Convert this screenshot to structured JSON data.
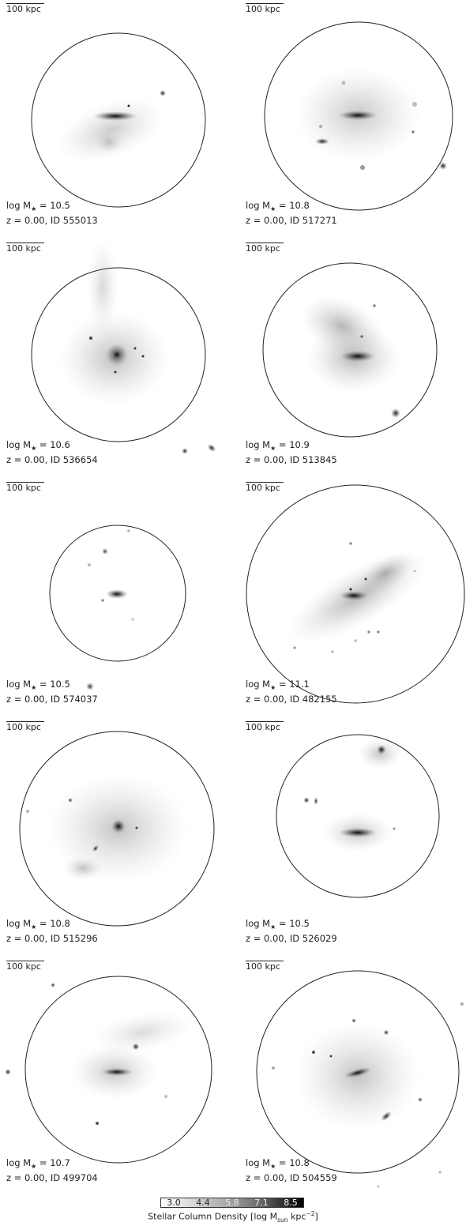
{
  "panels": [
    {
      "scale": "100 kpc",
      "mass_prefix": "log M",
      "mass_value": " = 10.5",
      "redshift": "z = 0.00, ID 555013"
    },
    {
      "scale": "100 kpc",
      "mass_prefix": "log M",
      "mass_value": " = 10.8",
      "redshift": "z = 0.00, ID 517271"
    },
    {
      "scale": "100 kpc",
      "mass_prefix": "log M",
      "mass_value": " = 10.6",
      "redshift": "z = 0.00, ID 536654"
    },
    {
      "scale": "100 kpc",
      "mass_prefix": "log M",
      "mass_value": " = 10.9",
      "redshift": "z = 0.00, ID 513845"
    },
    {
      "scale": "100 kpc",
      "mass_prefix": "log M",
      "mass_value": " = 10.5",
      "redshift": "z = 0.00, ID 574037"
    },
    {
      "scale": "100 kpc",
      "mass_prefix": "log M",
      "mass_value": " = 11.1",
      "redshift": "z = 0.00, ID 482155"
    },
    {
      "scale": "100 kpc",
      "mass_prefix": "log M",
      "mass_value": " = 10.8",
      "redshift": "z = 0.00, ID 515296"
    },
    {
      "scale": "100 kpc",
      "mass_prefix": "log M",
      "mass_value": " = 10.5",
      "redshift": "z = 0.00, ID 526029"
    },
    {
      "scale": "100 kpc",
      "mass_prefix": "log M",
      "mass_value": " = 10.7",
      "redshift": "z = 0.00, ID 499704"
    },
    {
      "scale": "100 kpc",
      "mass_prefix": "log M",
      "mass_value": " = 10.8",
      "redshift": "z = 0.00, ID 504559"
    }
  ],
  "colorbar": {
    "ticks": [
      "3.0",
      "4.4",
      "5.8",
      "7.1",
      "8.5"
    ],
    "label_main": "Stellar Column Density [log M",
    "label_sub": "sun",
    "label_unit": " kpc",
    "label_sup": "−2",
    "label_end": "]"
  },
  "colors": {
    "gradient_low": "#ffffff",
    "gradient_high": "#000000"
  }
}
